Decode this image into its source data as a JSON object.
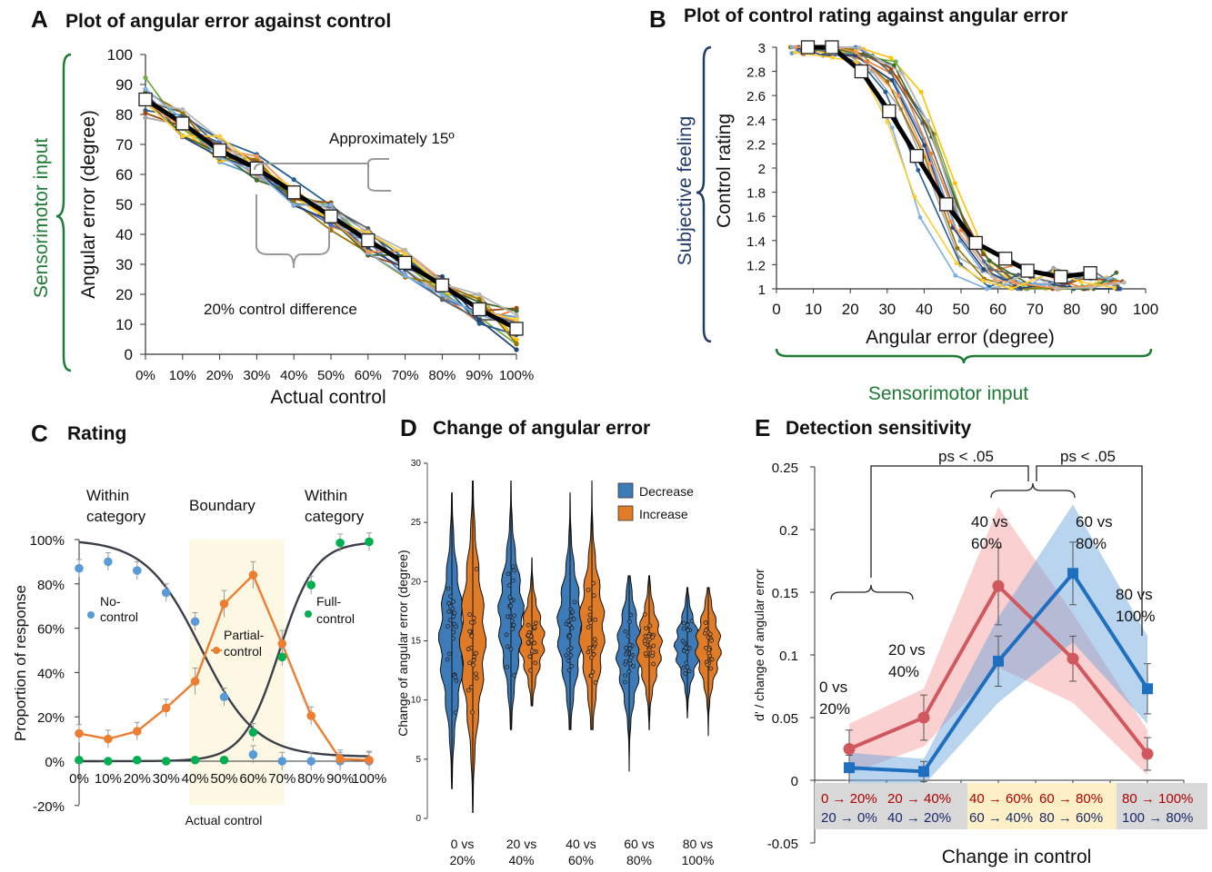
{
  "panels": {
    "A": {
      "letter": "A",
      "title": "Plot of angular error against control"
    },
    "B": {
      "letter": "B",
      "title": "Plot of control rating against angular error"
    },
    "C": {
      "letter": "C",
      "title": "Rating"
    },
    "D": {
      "letter": "D",
      "title": "Change of angular error"
    },
    "E": {
      "letter": "E",
      "title": "Detection sensitivity"
    }
  },
  "colors": {
    "sensorimotor": "#1e7b34",
    "subjective": "#233a6b",
    "blue": "#5b9bd5",
    "orange": "#ed7d31",
    "green": "#00b050",
    "dark": "#3a3f4a",
    "violin_blue": "#3d7ab8",
    "violin_orange": "#e07b28",
    "e_red": "#d0585e",
    "e_blue": "#1f6fc0",
    "boundary_fill": "#fdf8e4"
  },
  "chart_data": [
    {
      "panel": "A",
      "type": "line",
      "title": "Plot of angular error against control",
      "xlabel": "Actual control",
      "ylabel": "Angular error (degree)",
      "side_label": "Sensorimotor input",
      "x": [
        "0%",
        "10%",
        "20%",
        "30%",
        "40%",
        "50%",
        "60%",
        "70%",
        "80%",
        "90%",
        "100%"
      ],
      "yticks": [
        "0",
        "10",
        "20",
        "30",
        "40",
        "50",
        "60",
        "70",
        "80",
        "90",
        "100"
      ],
      "ylim": [
        0,
        100
      ],
      "series": [
        {
          "values": [
            85,
            77,
            68,
            62,
            54,
            46,
            38,
            30.5,
            23,
            15,
            8.5
          ],
          "style": "mean"
        }
      ],
      "annotations": [
        "Approximately 15º",
        "20% control difference"
      ]
    },
    {
      "panel": "B",
      "type": "line",
      "title": "Plot of control rating against angular error",
      "xlabel": "Angular error (degree)",
      "ylabel": "Control rating",
      "side_label_y": "Subjective feeling",
      "side_label_x": "Sensorimotor input",
      "xticks": [
        "0",
        "10",
        "20",
        "30",
        "40",
        "50",
        "60",
        "70",
        "80",
        "90",
        "100"
      ],
      "yticks": [
        "1",
        "1.2",
        "1.4",
        "1.6",
        "1.8",
        "2",
        "2.2",
        "2.4",
        "2.6",
        "2.8",
        "3"
      ],
      "xlim": [
        0,
        100
      ],
      "ylim": [
        1,
        3
      ],
      "series": [
        {
          "x": [
            8.5,
            15,
            23,
            30.5,
            38,
            46,
            54,
            62,
            68,
            77,
            85
          ],
          "values": [
            3,
            3,
            2.8,
            2.47,
            2.1,
            1.7,
            1.38,
            1.25,
            1.15,
            1.1,
            1.13
          ],
          "style": "mean"
        }
      ]
    },
    {
      "panel": "C",
      "type": "line",
      "title": "Rating",
      "xlabel": "Actual control",
      "ylabel": "Proportion of response",
      "x": [
        "0%",
        "10%",
        "20%",
        "30%",
        "40%",
        "50%",
        "60%",
        "70%",
        "80%",
        "90%",
        "100%"
      ],
      "yticks": [
        "-20%",
        "0%",
        "20%",
        "40%",
        "60%",
        "80%",
        "100%"
      ],
      "ylim": [
        -20,
        100
      ],
      "regions": [
        "Within category",
        "Boundary",
        "Within category"
      ],
      "series": [
        {
          "name": "No-control",
          "values": [
            87,
            90,
            86,
            76,
            63,
            29,
            3,
            0,
            0,
            0,
            0
          ]
        },
        {
          "name": "Partial-control",
          "values": [
            12.5,
            10,
            13.5,
            24,
            36,
            71,
            84,
            53,
            20.5,
            1,
            0.5
          ]
        },
        {
          "name": "Full-control",
          "values": [
            0.5,
            0,
            0.5,
            0,
            0.5,
            0.5,
            13,
            47,
            79.5,
            98.5,
            99
          ]
        }
      ]
    },
    {
      "panel": "D",
      "type": "violin",
      "title": "Change of angular error",
      "ylabel": "Change of angular error (degree)",
      "yticks": [
        "0",
        "5",
        "10",
        "15",
        "20",
        "25",
        "30"
      ],
      "ylim": [
        0,
        30
      ],
      "categories": [
        "0 vs\n20%",
        "20 vs\n40%",
        "40 vs\n60%",
        "60 vs\n80%",
        "80 vs\n100%"
      ],
      "series": [
        {
          "name": "Decrease",
          "medians": [
            15,
            17,
            16,
            14,
            14.5
          ],
          "ranges": [
            [
              2.5,
              27.5
            ],
            [
              7.5,
              28.5
            ],
            [
              7.5,
              27.5
            ],
            [
              4,
              20.5
            ],
            [
              8.5,
              19.5
            ]
          ]
        },
        {
          "name": "Increase",
          "medians": [
            15,
            15,
            16,
            14.5,
            14.5
          ],
          "ranges": [
            [
              0.5,
              28.5
            ],
            [
              9.5,
              22
            ],
            [
              7.5,
              28.5
            ],
            [
              7.5,
              20.5
            ],
            [
              7,
              19.5
            ]
          ]
        }
      ]
    },
    {
      "panel": "E",
      "type": "line",
      "title": "Detection sensitivity",
      "xlabel": "Change in control",
      "ylabel": "d' / change of angular error",
      "yticks": [
        "-0.05",
        "0",
        "0.05",
        "0.1",
        "0.15",
        "0.2",
        "0.25"
      ],
      "ylim": [
        -0.05,
        0.25
      ],
      "point_labels": [
        "0 vs\n20%",
        "20 vs\n40%",
        "40 vs\n60%",
        "60 vs\n80%",
        "80 vs\n100%"
      ],
      "bottom_labels_top": [
        "0 → 20%",
        "20 → 40%",
        "40 → 60%",
        "60 → 80%",
        "80 → 100%"
      ],
      "bottom_labels_bottom": [
        "20 → 0%",
        "40 → 20%",
        "60 → 40%",
        "80 → 60%",
        "100 → 80%"
      ],
      "significance": [
        "ps < .05",
        "ps < .05"
      ],
      "series": [
        {
          "values": [
            0.025,
            0.05,
            0.155,
            0.097,
            0.021
          ],
          "band": [
            [
              0.005,
              0.045
            ],
            [
              0.027,
              0.073
            ],
            [
              0.09,
              0.218
            ],
            [
              0.062,
              0.133
            ],
            [
              0.004,
              0.04
            ]
          ],
          "err": [
            0.015,
            0.018,
            0.031,
            0.018,
            0.013
          ]
        },
        {
          "values": [
            0.01,
            0.007,
            0.095,
            0.165,
            0.073
          ],
          "band": [
            [
              -0.002,
              0.022
            ],
            [
              -0.004,
              0.017
            ],
            [
              0.062,
              0.13
            ],
            [
              0.11,
              0.22
            ],
            [
              0.045,
              0.115
            ]
          ],
          "err": [
            0.01,
            0.008,
            0.02,
            0.025,
            0.02
          ]
        }
      ]
    }
  ]
}
